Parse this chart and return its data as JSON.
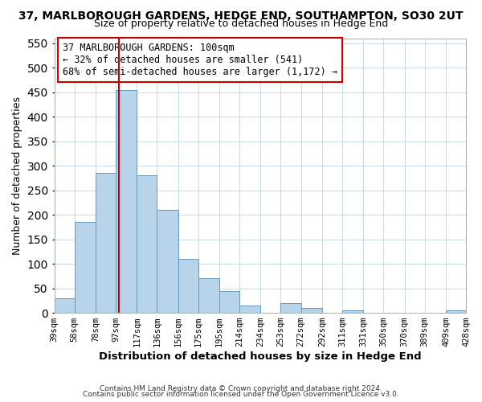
{
  "title": "37, MARLBOROUGH GARDENS, HEDGE END, SOUTHAMPTON, SO30 2UT",
  "subtitle": "Size of property relative to detached houses in Hedge End",
  "xlabel": "Distribution of detached houses by size in Hedge End",
  "ylabel": "Number of detached properties",
  "bar_color": "#b8d4ea",
  "bar_edge_color": "#6699bb",
  "bins": [
    39,
    58,
    78,
    97,
    117,
    136,
    156,
    175,
    195,
    214,
    234,
    253,
    272,
    292,
    311,
    331,
    350,
    370,
    389,
    409,
    428
  ],
  "bin_labels": [
    "39sqm",
    "58sqm",
    "78sqm",
    "97sqm",
    "117sqm",
    "136sqm",
    "156sqm",
    "175sqm",
    "195sqm",
    "214sqm",
    "234sqm",
    "253sqm",
    "272sqm",
    "292sqm",
    "311sqm",
    "331sqm",
    "350sqm",
    "370sqm",
    "389sqm",
    "409sqm",
    "428sqm"
  ],
  "values": [
    30,
    185,
    285,
    455,
    280,
    210,
    110,
    70,
    45,
    15,
    0,
    20,
    10,
    0,
    5,
    0,
    0,
    0,
    0,
    5
  ],
  "ylim": [
    0,
    560
  ],
  "yticks": [
    0,
    50,
    100,
    150,
    200,
    250,
    300,
    350,
    400,
    450,
    500,
    550
  ],
  "vline_x": 100,
  "vline_color": "#cc0000",
  "annotation_title": "37 MARLBOROUGH GARDENS: 100sqm",
  "annotation_line1": "← 32% of detached houses are smaller (541)",
  "annotation_line2": "68% of semi-detached houses are larger (1,172) →",
  "annotation_box_color": "#ffffff",
  "annotation_box_edge_color": "#cc0000",
  "footer1": "Contains HM Land Registry data © Crown copyright and database right 2024.",
  "footer2": "Contains public sector information licensed under the Open Government Licence v3.0.",
  "background_color": "#ffffff",
  "grid_color": "#c8d8e8"
}
